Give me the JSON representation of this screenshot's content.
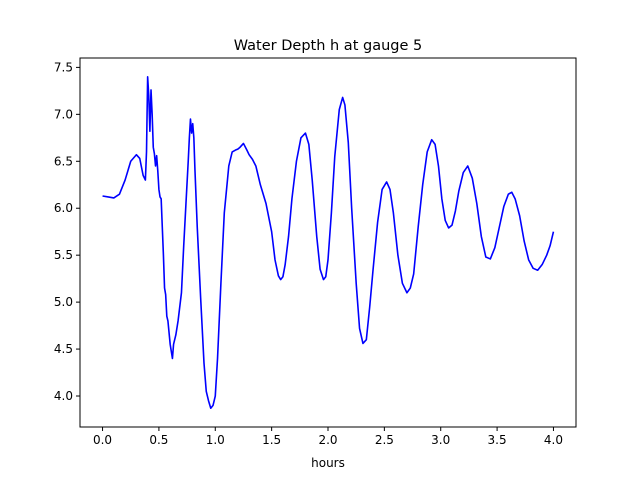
{
  "chart_data": {
    "type": "line",
    "title": "Water Depth h at gauge 5",
    "xlabel": "hours",
    "ylabel": "",
    "xlim": [
      -0.2,
      4.2
    ],
    "ylim": [
      3.67,
      7.6
    ],
    "xticks": [
      0.0,
      0.5,
      1.0,
      1.5,
      2.0,
      2.5,
      3.0,
      3.5,
      4.0
    ],
    "xtick_labels": [
      "0.0",
      "0.5",
      "1.0",
      "1.5",
      "2.0",
      "2.5",
      "3.0",
      "3.5",
      "4.0"
    ],
    "yticks": [
      4.0,
      4.5,
      5.0,
      5.5,
      6.0,
      6.5,
      7.0,
      7.5
    ],
    "ytick_labels": [
      "4.0",
      "4.5",
      "5.0",
      "5.5",
      "6.0",
      "6.5",
      "7.0",
      "7.5"
    ],
    "grid": false,
    "series": [
      {
        "color": "#0000ff",
        "x": [
          0.0,
          0.05,
          0.1,
          0.15,
          0.2,
          0.25,
          0.3,
          0.33,
          0.36,
          0.38,
          0.39,
          0.4,
          0.41,
          0.42,
          0.43,
          0.44,
          0.45,
          0.46,
          0.47,
          0.48,
          0.49,
          0.5,
          0.51,
          0.52,
          0.53,
          0.54,
          0.55,
          0.56,
          0.57,
          0.58,
          0.6,
          0.62,
          0.63,
          0.65,
          0.67,
          0.7,
          0.72,
          0.74,
          0.76,
          0.77,
          0.78,
          0.79,
          0.8,
          0.81,
          0.82,
          0.84,
          0.87,
          0.9,
          0.92,
          0.94,
          0.96,
          0.98,
          1.0,
          1.02,
          1.05,
          1.08,
          1.1,
          1.12,
          1.15,
          1.18,
          1.2,
          1.22,
          1.25,
          1.28,
          1.3,
          1.33,
          1.36,
          1.4,
          1.45,
          1.5,
          1.53,
          1.56,
          1.58,
          1.6,
          1.62,
          1.65,
          1.68,
          1.72,
          1.76,
          1.8,
          1.83,
          1.86,
          1.9,
          1.93,
          1.96,
          1.98,
          2.0,
          2.03,
          2.06,
          2.1,
          2.13,
          2.15,
          2.18,
          2.21,
          2.25,
          2.28,
          2.31,
          2.34,
          2.37,
          2.4,
          2.44,
          2.48,
          2.52,
          2.55,
          2.58,
          2.62,
          2.66,
          2.7,
          2.73,
          2.76,
          2.8,
          2.84,
          2.88,
          2.92,
          2.95,
          2.98,
          3.01,
          3.04,
          3.07,
          3.1,
          3.13,
          3.16,
          3.2,
          3.24,
          3.28,
          3.32,
          3.36,
          3.4,
          3.44,
          3.48,
          3.52,
          3.56,
          3.6,
          3.63,
          3.66,
          3.7,
          3.74,
          3.78,
          3.82,
          3.86,
          3.9,
          3.94,
          3.97,
          4.0
        ],
        "y": [
          6.13,
          6.12,
          6.11,
          6.15,
          6.3,
          6.5,
          6.57,
          6.53,
          6.35,
          6.3,
          6.6,
          7.4,
          7.2,
          6.82,
          7.26,
          7.0,
          6.65,
          6.58,
          6.45,
          6.56,
          6.4,
          6.2,
          6.12,
          6.1,
          5.8,
          5.5,
          5.15,
          5.08,
          4.85,
          4.8,
          4.55,
          4.4,
          4.55,
          4.65,
          4.8,
          5.1,
          5.6,
          6.05,
          6.5,
          6.75,
          6.95,
          6.8,
          6.9,
          6.75,
          6.4,
          5.8,
          5.05,
          4.35,
          4.05,
          3.95,
          3.87,
          3.9,
          4.0,
          4.4,
          5.2,
          5.95,
          6.2,
          6.45,
          6.6,
          6.62,
          6.63,
          6.65,
          6.69,
          6.62,
          6.57,
          6.52,
          6.45,
          6.25,
          6.05,
          5.75,
          5.45,
          5.28,
          5.24,
          5.27,
          5.4,
          5.7,
          6.1,
          6.5,
          6.75,
          6.8,
          6.68,
          6.3,
          5.7,
          5.35,
          5.24,
          5.27,
          5.45,
          5.95,
          6.55,
          7.05,
          7.18,
          7.1,
          6.7,
          6.0,
          5.2,
          4.72,
          4.56,
          4.6,
          4.95,
          5.35,
          5.85,
          6.2,
          6.28,
          6.2,
          5.95,
          5.5,
          5.2,
          5.1,
          5.15,
          5.3,
          5.8,
          6.25,
          6.6,
          6.73,
          6.68,
          6.45,
          6.1,
          5.87,
          5.79,
          5.82,
          5.97,
          6.18,
          6.38,
          6.45,
          6.32,
          6.05,
          5.7,
          5.48,
          5.46,
          5.58,
          5.8,
          6.02,
          6.15,
          6.17,
          6.1,
          5.92,
          5.65,
          5.45,
          5.36,
          5.34,
          5.4,
          5.5,
          5.6,
          5.75
        ]
      }
    ]
  }
}
